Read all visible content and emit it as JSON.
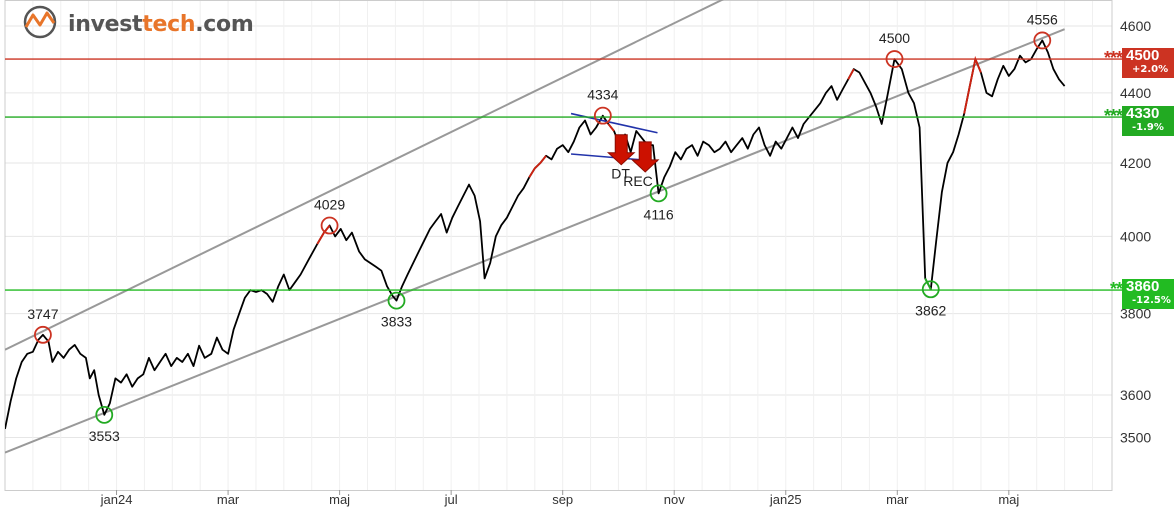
{
  "brand": {
    "part1": "invest",
    "part2": "tech",
    "part3": ".com",
    "accent": "#e8752a",
    "icon": "investtech-logo-icon"
  },
  "chart_data": {
    "type": "line",
    "y_ticks": [
      3500,
      3600,
      3800,
      4000,
      4200,
      4400,
      4600
    ],
    "ylim": [
      3380,
      4680
    ],
    "x_ticks": [
      {
        "label": "jan24",
        "t": 3.0
      },
      {
        "label": "mar",
        "t": 5.0
      },
      {
        "label": "maj",
        "t": 7.0
      },
      {
        "label": "jul",
        "t": 9.0
      },
      {
        "label": "sep",
        "t": 11.0
      },
      {
        "label": "nov",
        "t": 13.0
      },
      {
        "label": "jan25",
        "t": 15.0
      },
      {
        "label": "mar",
        "t": 17.0
      },
      {
        "label": "maj",
        "t": 19.0
      }
    ],
    "xlim": [
      1.0,
      20.85
    ],
    "price": [
      [
        1.0,
        3520
      ],
      [
        1.1,
        3585
      ],
      [
        1.2,
        3640
      ],
      [
        1.3,
        3680
      ],
      [
        1.4,
        3700
      ],
      [
        1.5,
        3705
      ],
      [
        1.6,
        3735
      ],
      [
        1.68,
        3747
      ],
      [
        1.78,
        3730
      ],
      [
        1.85,
        3680
      ],
      [
        1.95,
        3705
      ],
      [
        2.05,
        3690
      ],
      [
        2.15,
        3710
      ],
      [
        2.25,
        3722
      ],
      [
        2.35,
        3700
      ],
      [
        2.45,
        3690
      ],
      [
        2.52,
        3640
      ],
      [
        2.6,
        3660
      ],
      [
        2.68,
        3600
      ],
      [
        2.78,
        3553
      ],
      [
        2.88,
        3580
      ],
      [
        2.98,
        3640
      ],
      [
        3.08,
        3630
      ],
      [
        3.18,
        3650
      ],
      [
        3.28,
        3620
      ],
      [
        3.38,
        3640
      ],
      [
        3.48,
        3650
      ],
      [
        3.58,
        3690
      ],
      [
        3.68,
        3660
      ],
      [
        3.78,
        3680
      ],
      [
        3.88,
        3700
      ],
      [
        3.98,
        3670
      ],
      [
        4.08,
        3690
      ],
      [
        4.18,
        3680
      ],
      [
        4.28,
        3700
      ],
      [
        4.38,
        3670
      ],
      [
        4.48,
        3720
      ],
      [
        4.58,
        3690
      ],
      [
        4.7,
        3700
      ],
      [
        4.8,
        3740
      ],
      [
        4.9,
        3710
      ],
      [
        5.0,
        3700
      ],
      [
        5.1,
        3760
      ],
      [
        5.2,
        3800
      ],
      [
        5.3,
        3840
      ],
      [
        5.4,
        3860
      ],
      [
        5.5,
        3855
      ],
      [
        5.6,
        3860
      ],
      [
        5.7,
        3850
      ],
      [
        5.8,
        3830
      ],
      [
        5.9,
        3870
      ],
      [
        6.0,
        3900
      ],
      [
        6.1,
        3860
      ],
      [
        6.2,
        3880
      ],
      [
        6.3,
        3900
      ],
      [
        6.45,
        3940
      ],
      [
        6.6,
        3980
      ],
      [
        6.72,
        4010
      ],
      [
        6.82,
        4029
      ],
      [
        6.92,
        4000
      ],
      [
        7.02,
        4020
      ],
      [
        7.12,
        3990
      ],
      [
        7.22,
        4010
      ],
      [
        7.35,
        3960
      ],
      [
        7.45,
        3940
      ],
      [
        7.55,
        3930
      ],
      [
        7.65,
        3920
      ],
      [
        7.75,
        3910
      ],
      [
        7.85,
        3870
      ],
      [
        7.95,
        3845
      ],
      [
        8.02,
        3833
      ],
      [
        8.12,
        3870
      ],
      [
        8.22,
        3900
      ],
      [
        8.32,
        3930
      ],
      [
        8.42,
        3960
      ],
      [
        8.52,
        3990
      ],
      [
        8.62,
        4020
      ],
      [
        8.72,
        4040
      ],
      [
        8.82,
        4060
      ],
      [
        8.92,
        4010
      ],
      [
        9.02,
        4050
      ],
      [
        9.12,
        4080
      ],
      [
        9.22,
        4110
      ],
      [
        9.32,
        4140
      ],
      [
        9.42,
        4110
      ],
      [
        9.52,
        4040
      ],
      [
        9.6,
        3890
      ],
      [
        9.7,
        3930
      ],
      [
        9.8,
        4000
      ],
      [
        9.9,
        4030
      ],
      [
        10.0,
        4050
      ],
      [
        10.1,
        4080
      ],
      [
        10.2,
        4110
      ],
      [
        10.3,
        4130
      ],
      [
        10.4,
        4160
      ],
      [
        10.5,
        4185
      ],
      [
        10.6,
        4200
      ],
      [
        10.7,
        4220
      ],
      [
        10.8,
        4210
      ],
      [
        10.9,
        4240
      ],
      [
        11.0,
        4250
      ],
      [
        11.1,
        4230
      ],
      [
        11.2,
        4260
      ],
      [
        11.3,
        4300
      ],
      [
        11.4,
        4320
      ],
      [
        11.5,
        4280
      ],
      [
        11.6,
        4300
      ],
      [
        11.72,
        4334
      ],
      [
        11.82,
        4310
      ],
      [
        11.92,
        4290
      ],
      [
        12.02,
        4250
      ],
      [
        12.12,
        4280
      ],
      [
        12.22,
        4230
      ],
      [
        12.32,
        4290
      ],
      [
        12.42,
        4270
      ],
      [
        12.52,
        4250
      ],
      [
        12.62,
        4250
      ],
      [
        12.72,
        4116
      ],
      [
        12.82,
        4160
      ],
      [
        12.92,
        4190
      ],
      [
        13.02,
        4230
      ],
      [
        13.12,
        4210
      ],
      [
        13.22,
        4240
      ],
      [
        13.32,
        4250
      ],
      [
        13.42,
        4220
      ],
      [
        13.52,
        4260
      ],
      [
        13.62,
        4250
      ],
      [
        13.72,
        4230
      ],
      [
        13.82,
        4240
      ],
      [
        13.92,
        4260
      ],
      [
        14.02,
        4230
      ],
      [
        14.12,
        4250
      ],
      [
        14.22,
        4270
      ],
      [
        14.32,
        4240
      ],
      [
        14.42,
        4280
      ],
      [
        14.52,
        4300
      ],
      [
        14.62,
        4250
      ],
      [
        14.72,
        4220
      ],
      [
        14.82,
        4260
      ],
      [
        14.92,
        4240
      ],
      [
        15.02,
        4270
      ],
      [
        15.12,
        4300
      ],
      [
        15.22,
        4270
      ],
      [
        15.32,
        4310
      ],
      [
        15.42,
        4330
      ],
      [
        15.52,
        4350
      ],
      [
        15.62,
        4370
      ],
      [
        15.72,
        4400
      ],
      [
        15.82,
        4420
      ],
      [
        15.92,
        4380
      ],
      [
        16.02,
        4410
      ],
      [
        16.12,
        4440
      ],
      [
        16.22,
        4470
      ],
      [
        16.32,
        4460
      ],
      [
        16.42,
        4430
      ],
      [
        16.52,
        4400
      ],
      [
        16.62,
        4360
      ],
      [
        16.72,
        4310
      ],
      [
        16.82,
        4390
      ],
      [
        16.95,
        4500
      ],
      [
        17.08,
        4470
      ],
      [
        17.2,
        4400
      ],
      [
        17.3,
        4370
      ],
      [
        17.4,
        4300
      ],
      [
        17.5,
        3890
      ],
      [
        17.6,
        3862
      ],
      [
        17.7,
        3990
      ],
      [
        17.8,
        4120
      ],
      [
        17.9,
        4200
      ],
      [
        18.0,
        4230
      ],
      [
        18.1,
        4280
      ],
      [
        18.2,
        4340
      ],
      [
        18.3,
        4420
      ],
      [
        18.4,
        4500
      ],
      [
        18.5,
        4460
      ],
      [
        18.6,
        4400
      ],
      [
        18.7,
        4390
      ],
      [
        18.8,
        4440
      ],
      [
        18.9,
        4480
      ],
      [
        19.0,
        4450
      ],
      [
        19.1,
        4470
      ],
      [
        19.2,
        4510
      ],
      [
        19.3,
        4490
      ],
      [
        19.4,
        4500
      ],
      [
        19.5,
        4530
      ],
      [
        19.6,
        4556
      ],
      [
        19.7,
        4520
      ],
      [
        19.8,
        4470
      ],
      [
        19.9,
        4440
      ],
      [
        20.0,
        4420
      ]
    ],
    "channel": [
      {
        "p1": [
          1.0,
          3710
        ],
        "p2": [
          20.0,
          5230
        ]
      },
      {
        "p1": [
          1.0,
          3465
        ],
        "p2": [
          20.0,
          4590
        ]
      }
    ],
    "h_lines": [
      {
        "value": 4500,
        "color": "#cc3322",
        "stars": "***",
        "label": "4500",
        "pct": "+2.0%"
      },
      {
        "value": 4330,
        "color": "#22aa22",
        "stars": "***",
        "label": "4330",
        "pct": "-1.9%"
      },
      {
        "value": 3860,
        "color": "#22bb22",
        "stars": "**",
        "label": "3860",
        "pct": "-12.5%"
      }
    ],
    "wedge": [
      {
        "p1": [
          11.15,
          4340
        ],
        "p2": [
          12.7,
          4285
        ]
      },
      {
        "p1": [
          11.15,
          4225
        ],
        "p2": [
          12.7,
          4205
        ]
      }
    ],
    "extrema": [
      {
        "t": 1.68,
        "v": 3747,
        "kind": "top",
        "label": "3747"
      },
      {
        "t": 2.78,
        "v": 3553,
        "kind": "bottom",
        "label": "3553"
      },
      {
        "t": 6.82,
        "v": 4029,
        "kind": "top",
        "label": "4029"
      },
      {
        "t": 8.02,
        "v": 3833,
        "kind": "bottom",
        "label": "3833"
      },
      {
        "t": 11.72,
        "v": 4334,
        "kind": "top",
        "label": "4334"
      },
      {
        "t": 12.72,
        "v": 4116,
        "kind": "bottom",
        "label": "4116"
      },
      {
        "t": 16.95,
        "v": 4500,
        "kind": "top",
        "label": "4500"
      },
      {
        "t": 17.6,
        "v": 3862,
        "kind": "bottom",
        "label": "3862"
      },
      {
        "t": 19.6,
        "v": 4556,
        "kind": "top",
        "label": "4556"
      }
    ],
    "signals": [
      {
        "t": 12.05,
        "v": 4195,
        "text": "DT"
      },
      {
        "t": 12.48,
        "v": 4175,
        "text": "REC"
      }
    ],
    "colors": {
      "price": "#000000",
      "highlight": "#cc2211",
      "channel": "#999999",
      "wedge": "#2233aa",
      "grid": "#e6e6e6",
      "top_circle": "#cc3322",
      "bottom_circle": "#22aa22"
    }
  }
}
